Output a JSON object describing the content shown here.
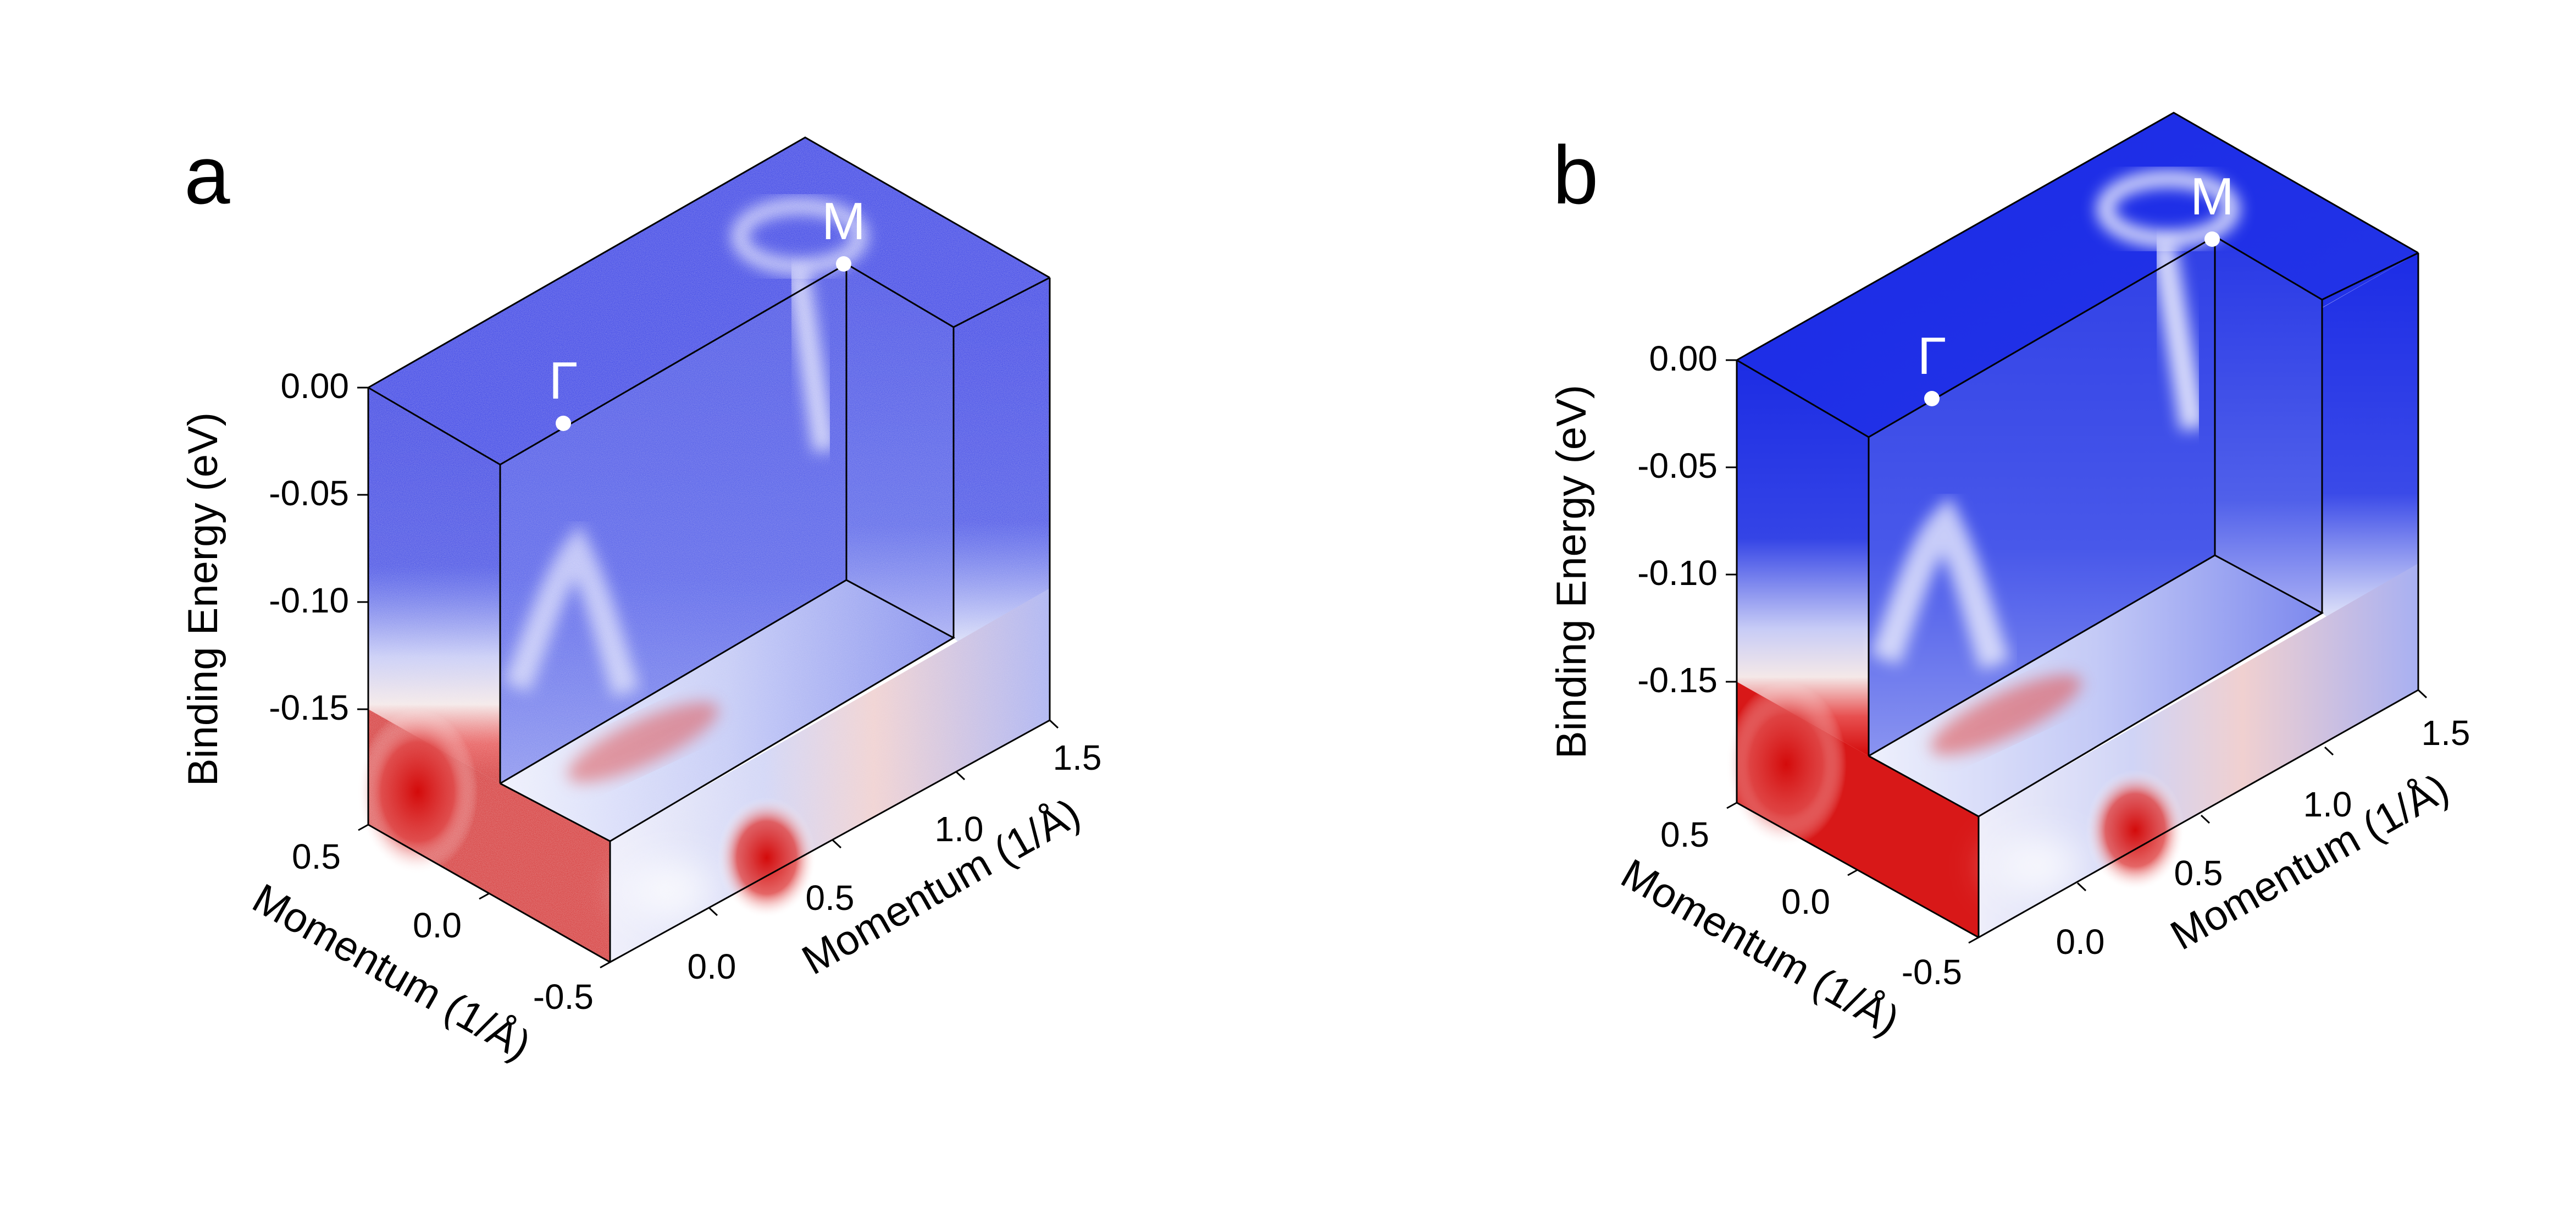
{
  "chart_data": [
    {
      "type": "heatmap",
      "panel_label": "a",
      "rendering": "3D ARPES intensity cube (cut-away), measured data",
      "colormap": [
        "#0a1ee6",
        "#ffffff",
        "#dc0a0a"
      ],
      "points": [
        {
          "label": "Γ"
        },
        {
          "label": "M"
        }
      ],
      "zaxis": {
        "label": "Binding Energy (eV)",
        "ticks": [
          "0.00",
          "-0.05",
          "-0.10",
          "-0.15"
        ],
        "range": [
          -0.19,
          0.0
        ]
      },
      "yaxis": {
        "label": "Momentum (1/Å)",
        "ticks": [
          "0.5",
          "0.0",
          "-0.5"
        ],
        "range": [
          -0.5,
          0.5
        ]
      },
      "xaxis": {
        "label": "Momentum (1/Å)",
        "ticks": [
          "0.0",
          "0.5",
          "1.0",
          "1.5"
        ],
        "range": [
          -0.2,
          1.6
        ]
      }
    },
    {
      "type": "heatmap",
      "panel_label": "b",
      "rendering": "3D ARPES intensity cube (cut-away), calculated spectral function",
      "colormap": [
        "#0a1ee6",
        "#ffffff",
        "#dc0a0a"
      ],
      "points": [
        {
          "label": "Γ"
        },
        {
          "label": "M"
        }
      ],
      "zaxis": {
        "label": "Binding Energy (eV)",
        "ticks": [
          "0.00",
          "-0.05",
          "-0.10",
          "-0.15"
        ],
        "range": [
          -0.19,
          0.0
        ]
      },
      "yaxis": {
        "label": "Momentum (1/Å)",
        "ticks": [
          "0.5",
          "0.0",
          "-0.5"
        ],
        "range": [
          -0.5,
          0.5
        ]
      },
      "xaxis": {
        "label": "Momentum (1/Å)",
        "ticks": [
          "0.0",
          "0.5",
          "1.0",
          "1.5"
        ],
        "range": [
          -0.2,
          1.6
        ]
      }
    }
  ]
}
